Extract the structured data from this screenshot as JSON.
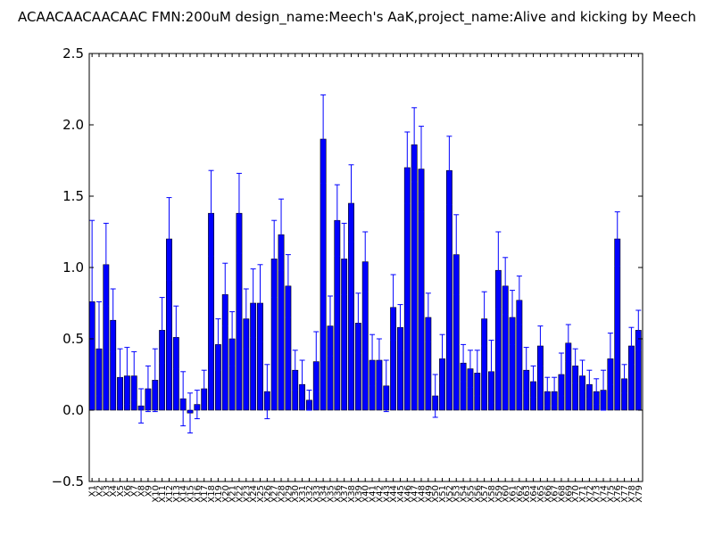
{
  "chart_data": {
    "type": "bar",
    "title": "ACAACAACAACAAC  FMN:200uM  design_name:Meech's AaK,project_name:Alive and kicking by Meech",
    "xlabel": "",
    "ylabel": "",
    "ylim": [
      -0.5,
      2.5
    ],
    "yticks": [
      "−0.5",
      "0.0",
      "0.5",
      "1.0",
      "1.5",
      "2.0",
      "2.5"
    ],
    "grid": false,
    "categories": [
      "X1",
      "X2",
      "X3",
      "X4",
      "X5",
      "X6",
      "X7",
      "X8",
      "X9",
      "X10",
      "X11",
      "X12",
      "X13",
      "X14",
      "X15",
      "X16",
      "X17",
      "X18",
      "X19",
      "X20",
      "X21",
      "X22",
      "X23",
      "X24",
      "X25",
      "X26",
      "X27",
      "X28",
      "X29",
      "X30",
      "X31",
      "X32",
      "X33",
      "X34",
      "X35",
      "X36",
      "X37",
      "X38",
      "X39",
      "X40",
      "X41",
      "X42",
      "X43",
      "X44",
      "X45",
      "X46",
      "X47",
      "X48",
      "X49",
      "X50",
      "X51",
      "X52",
      "X53",
      "X54",
      "X55",
      "X56",
      "X57",
      "X58",
      "X59",
      "X60",
      "X61",
      "X62",
      "X63",
      "X64",
      "X65",
      "X66",
      "X67",
      "X68",
      "X69",
      "X70",
      "X71",
      "X72",
      "X73",
      "X74",
      "X75",
      "X76",
      "X77",
      "X78",
      "X79"
    ],
    "values": [
      0.76,
      0.43,
      1.02,
      0.63,
      0.23,
      0.24,
      0.24,
      0.03,
      0.15,
      0.21,
      0.56,
      1.2,
      0.51,
      0.08,
      -0.02,
      0.04,
      0.15,
      1.38,
      0.46,
      0.81,
      0.5,
      1.38,
      0.64,
      0.75,
      0.75,
      0.13,
      1.06,
      1.23,
      0.87,
      0.28,
      0.18,
      0.07,
      0.34,
      1.9,
      0.59,
      1.33,
      1.06,
      1.45,
      0.61,
      1.04,
      0.35,
      0.35,
      0.17,
      0.72,
      0.58,
      1.7,
      1.86,
      1.69,
      0.65,
      0.1,
      0.36,
      1.68,
      1.09,
      0.33,
      0.29,
      0.26,
      0.64,
      0.27,
      0.98,
      0.87,
      0.65,
      0.77,
      0.28,
      0.2,
      0.45,
      0.13,
      0.13,
      0.25,
      0.47,
      0.31,
      0.24,
      0.18,
      0.13,
      0.14,
      0.36,
      1.2,
      0.22,
      0.45,
      0.56
    ],
    "errors": [
      0.57,
      0.33,
      0.29,
      0.22,
      0.2,
      0.2,
      0.17,
      0.12,
      0.16,
      0.22,
      0.23,
      0.29,
      0.22,
      0.19,
      0.14,
      0.1,
      0.13,
      0.3,
      0.18,
      0.22,
      0.19,
      0.28,
      0.21,
      0.24,
      0.27,
      0.19,
      0.27,
      0.25,
      0.22,
      0.14,
      0.17,
      0.07,
      0.21,
      0.31,
      0.21,
      0.25,
      0.25,
      0.27,
      0.21,
      0.21,
      0.18,
      0.15,
      0.18,
      0.23,
      0.16,
      0.25,
      0.26,
      0.3,
      0.17,
      0.15,
      0.17,
      0.24,
      0.28,
      0.13,
      0.13,
      0.16,
      0.19,
      0.22,
      0.27,
      0.2,
      0.19,
      0.17,
      0.16,
      0.11,
      0.14,
      0.1,
      0.1,
      0.15,
      0.13,
      0.12,
      0.11,
      0.1,
      0.09,
      0.14,
      0.18,
      0.19,
      0.1,
      0.13,
      0.14
    ],
    "bar_color": "#0000ff",
    "error_color": "#0000ff",
    "edge_color": "#000000"
  }
}
